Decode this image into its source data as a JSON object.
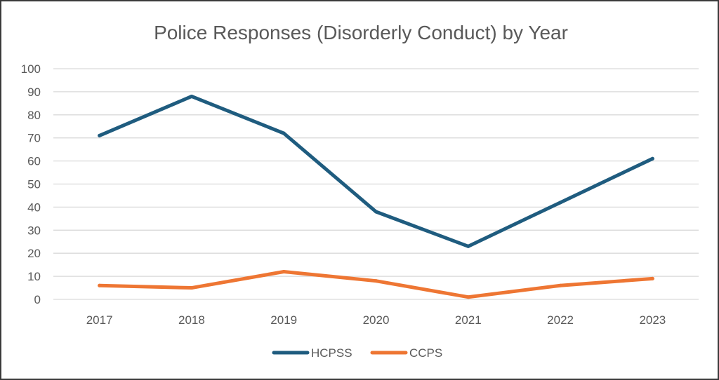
{
  "chart_data": {
    "type": "line",
    "title": "Police Responses (Disorderly Conduct) by Year",
    "categories": [
      "2017",
      "2018",
      "2019",
      "2020",
      "2021",
      "2022",
      "2023"
    ],
    "series": [
      {
        "name": "HCPSS",
        "color": "#1f5c7f",
        "values": [
          71,
          88,
          72,
          38,
          23,
          42,
          61
        ]
      },
      {
        "name": "CCPS",
        "color": "#ee7633",
        "values": [
          6,
          5,
          12,
          8,
          1,
          6,
          9
        ]
      }
    ],
    "ylim": [
      0,
      100
    ],
    "yticks": [
      0,
      10,
      20,
      30,
      40,
      50,
      60,
      70,
      80,
      90,
      100
    ],
    "grid": true,
    "legend_position": "bottom"
  }
}
